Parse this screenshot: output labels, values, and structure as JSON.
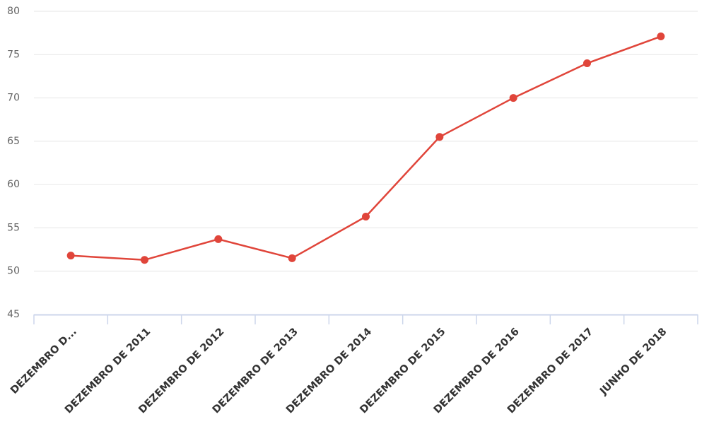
{
  "chart_data": {
    "type": "line",
    "categories": [
      "DEZEMBRO D...",
      "DEZEMBRO DE 2011",
      "DEZEMBRO DE 2012",
      "DEZEMBRO DE 2013",
      "DEZEMBRO DE 2014",
      "DEZEMBRO DE 2015",
      "DEZEMBRO DE 2016",
      "DEZEMBRO DE 2017",
      "JUNHO DE 2018"
    ],
    "values": [
      51.8,
      51.3,
      53.7,
      51.5,
      56.3,
      65.5,
      70.0,
      74.0,
      77.1
    ],
    "color": "#e0453a",
    "ylim": [
      45,
      80
    ],
    "yticks": [
      45,
      50,
      55,
      60,
      65,
      70,
      75,
      80
    ],
    "grid": true
  }
}
